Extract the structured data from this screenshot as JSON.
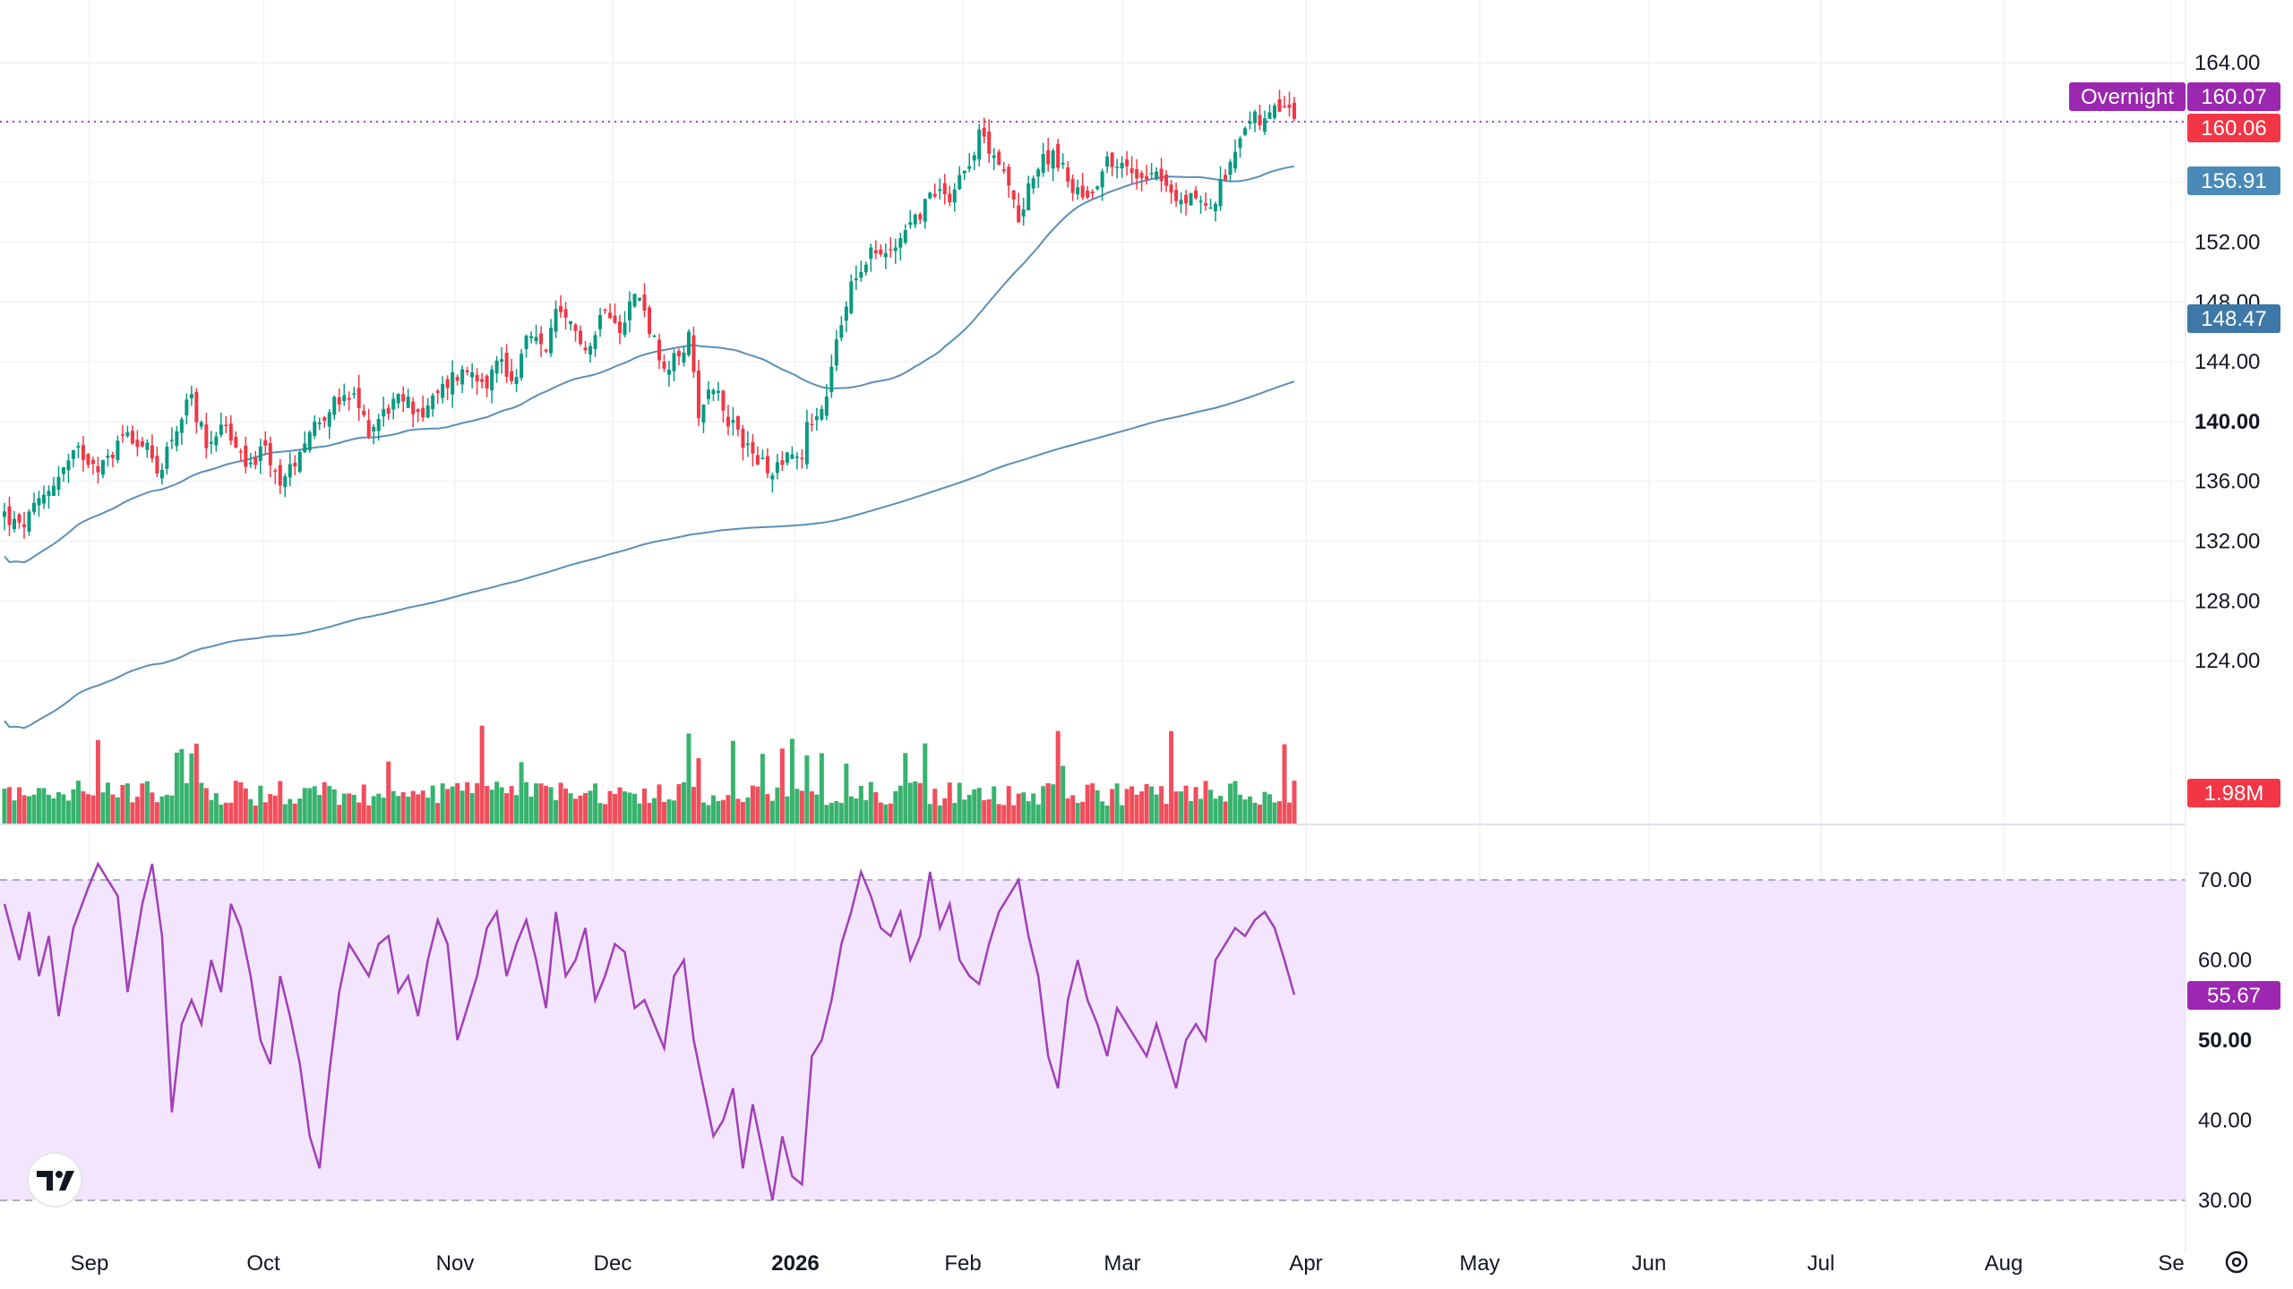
{
  "chart_data": {
    "type": "candlestick",
    "price_axis": {
      "ticks": [
        "164.00",
        "160.00",
        "156.00",
        "152.00",
        "148.00",
        "144.00",
        "140.00",
        "136.00",
        "132.00",
        "128.00",
        "124.00"
      ],
      "bold_tick": "140.00",
      "range": [
        120.8,
        166.0
      ]
    },
    "rsi_axis": {
      "ticks": [
        "70.00",
        "60.00",
        "50.00",
        "40.00",
        "30.00"
      ],
      "bold_tick": "50.00",
      "range": [
        28.5,
        72.0
      ],
      "band": [
        30,
        70
      ]
    },
    "x_labels": [
      {
        "text": "Sep",
        "day": 6,
        "bold": false
      },
      {
        "text": "Oct",
        "day": 36,
        "bold": false
      },
      {
        "text": "Nov",
        "day": 67,
        "bold": false
      },
      {
        "text": "Dec",
        "day": 97,
        "bold": false
      },
      {
        "text": "2026",
        "day": 128,
        "bold": true
      },
      {
        "text": "Feb",
        "day": 159,
        "bold": false
      },
      {
        "text": "Mar",
        "day": 187,
        "bold": false
      },
      {
        "text": "Apr",
        "day": 218,
        "bold": false
      },
      {
        "text": "May",
        "day": 248,
        "bold": false
      },
      {
        "text": "Jun",
        "day": 279,
        "bold": false
      },
      {
        "text": "Jul",
        "day": 309,
        "bold": false
      },
      {
        "text": "Aug",
        "day": 340,
        "bold": false
      },
      {
        "text": "Se",
        "day": 371,
        "bold": false
      }
    ],
    "tags": {
      "overnight_label": "Overnight",
      "overnight_price": "160.07",
      "last_price": "160.06",
      "ma_short": "156.91",
      "ma_long": "148.47",
      "volume": "1.98M",
      "rsi": "55.67"
    },
    "close_waypoints": [
      [
        0,
        133.8
      ],
      [
        3,
        132.8
      ],
      [
        6,
        134.0
      ],
      [
        10,
        136.0
      ],
      [
        15,
        138.0
      ],
      [
        20,
        137.0
      ],
      [
        25,
        139.5
      ],
      [
        29,
        138.0
      ],
      [
        31,
        136.5
      ],
      [
        34,
        139.0
      ],
      [
        38,
        141.5
      ],
      [
        41,
        138.5
      ],
      [
        44,
        140.0
      ],
      [
        49,
        137.0
      ],
      [
        53,
        138.0
      ],
      [
        55,
        136.5
      ],
      [
        57,
        136.0
      ],
      [
        61,
        139.0
      ],
      [
        66,
        141.0
      ],
      [
        71,
        141.5
      ],
      [
        74,
        139.5
      ],
      [
        78,
        141.0
      ],
      [
        81,
        141.5
      ],
      [
        85,
        140.5
      ],
      [
        91,
        143.0
      ],
      [
        95,
        143.5
      ],
      [
        98,
        142.8
      ],
      [
        101,
        144.3
      ],
      [
        103,
        142.5
      ],
      [
        106,
        145.5
      ],
      [
        110,
        145.0
      ],
      [
        112,
        147.0
      ],
      [
        116,
        146.0
      ],
      [
        119,
        145.0
      ],
      [
        122,
        148.0
      ],
      [
        125,
        146.5
      ],
      [
        128,
        148.5
      ],
      [
        130,
        147.5
      ],
      [
        134,
        143.0
      ],
      [
        139,
        145.5
      ],
      [
        141,
        140.8
      ],
      [
        144,
        142.5
      ],
      [
        148,
        139.5
      ],
      [
        152,
        138.0
      ],
      [
        155,
        136.5
      ],
      [
        159,
        138.0
      ],
      [
        162,
        137.5
      ],
      [
        163,
        140.0
      ],
      [
        166,
        140.5
      ],
      [
        169,
        145.0
      ],
      [
        172,
        149.5
      ],
      [
        176,
        151.5
      ],
      [
        179,
        151.0
      ],
      [
        182,
        152.5
      ],
      [
        186,
        154.0
      ],
      [
        189,
        155.5
      ],
      [
        192,
        155.2
      ],
      [
        195,
        157.0
      ],
      [
        198,
        159.0
      ],
      [
        201,
        158.2
      ],
      [
        204,
        155.5
      ],
      [
        206,
        153.5
      ],
      [
        208,
        156.0
      ],
      [
        213,
        158.2
      ],
      [
        216,
        156.0
      ],
      [
        220,
        155.0
      ],
      [
        224,
        157.5
      ],
      [
        227,
        157.0
      ],
      [
        230,
        156.5
      ],
      [
        234,
        157.0
      ],
      [
        238,
        154.5
      ],
      [
        242,
        155.2
      ],
      [
        245,
        154.0
      ],
      [
        248,
        156.5
      ],
      [
        250,
        158.5
      ],
      [
        253,
        160.5
      ],
      [
        256,
        159.8
      ],
      [
        259,
        161.0
      ],
      [
        262,
        160.5
      ]
    ],
    "rsi_waypoints": [
      [
        0,
        67
      ],
      [
        3,
        60
      ],
      [
        5,
        66
      ],
      [
        7,
        58
      ],
      [
        9,
        63
      ],
      [
        11,
        53
      ],
      [
        14,
        64
      ],
      [
        17,
        69
      ],
      [
        19,
        72
      ],
      [
        21,
        70
      ],
      [
        23,
        68
      ],
      [
        25,
        56
      ],
      [
        28,
        67
      ],
      [
        30,
        72
      ],
      [
        32,
        63
      ],
      [
        34,
        41
      ],
      [
        36,
        52
      ],
      [
        38,
        55
      ],
      [
        40,
        52
      ],
      [
        42,
        60
      ],
      [
        44,
        56
      ],
      [
        46,
        67
      ],
      [
        48,
        64
      ],
      [
        50,
        58
      ],
      [
        52,
        50
      ],
      [
        54,
        47
      ],
      [
        56,
        58
      ],
      [
        58,
        53
      ],
      [
        60,
        47
      ],
      [
        62,
        38
      ],
      [
        64,
        34
      ],
      [
        66,
        46
      ],
      [
        68,
        56
      ],
      [
        70,
        62
      ],
      [
        72,
        60
      ],
      [
        74,
        58
      ],
      [
        76,
        62
      ],
      [
        78,
        63
      ],
      [
        80,
        56
      ],
      [
        82,
        58
      ],
      [
        84,
        53
      ],
      [
        86,
        60
      ],
      [
        88,
        65
      ],
      [
        90,
        62
      ],
      [
        92,
        50
      ],
      [
        94,
        54
      ],
      [
        96,
        58
      ],
      [
        98,
        64
      ],
      [
        100,
        66
      ],
      [
        102,
        58
      ],
      [
        104,
        62
      ],
      [
        106,
        65
      ],
      [
        108,
        60
      ],
      [
        110,
        54
      ],
      [
        112,
        66
      ],
      [
        114,
        58
      ],
      [
        116,
        60
      ],
      [
        118,
        64
      ],
      [
        120,
        55
      ],
      [
        122,
        58
      ],
      [
        124,
        62
      ],
      [
        126,
        61
      ],
      [
        128,
        54
      ],
      [
        130,
        55
      ],
      [
        132,
        52
      ],
      [
        134,
        49
      ],
      [
        136,
        58
      ],
      [
        138,
        60
      ],
      [
        140,
        50
      ],
      [
        142,
        44
      ],
      [
        144,
        38
      ],
      [
        146,
        40
      ],
      [
        148,
        44
      ],
      [
        150,
        34
      ],
      [
        152,
        42
      ],
      [
        154,
        36
      ],
      [
        156,
        30
      ],
      [
        158,
        38
      ],
      [
        160,
        33
      ],
      [
        162,
        32
      ],
      [
        164,
        48
      ],
      [
        166,
        50
      ],
      [
        168,
        55
      ],
      [
        170,
        62
      ],
      [
        172,
        66
      ],
      [
        174,
        71
      ],
      [
        176,
        68
      ],
      [
        178,
        64
      ],
      [
        180,
        63
      ],
      [
        182,
        66
      ],
      [
        184,
        60
      ],
      [
        186,
        63
      ],
      [
        188,
        71
      ],
      [
        190,
        64
      ],
      [
        192,
        67
      ],
      [
        194,
        60
      ],
      [
        196,
        58
      ],
      [
        198,
        57
      ],
      [
        200,
        62
      ],
      [
        202,
        66
      ],
      [
        204,
        68
      ],
      [
        206,
        70
      ],
      [
        208,
        63
      ],
      [
        210,
        58
      ],
      [
        212,
        48
      ],
      [
        214,
        44
      ],
      [
        216,
        55
      ],
      [
        218,
        60
      ],
      [
        220,
        55
      ],
      [
        222,
        52
      ],
      [
        224,
        48
      ],
      [
        226,
        54
      ],
      [
        228,
        52
      ],
      [
        230,
        50
      ],
      [
        232,
        48
      ],
      [
        234,
        52
      ],
      [
        236,
        48
      ],
      [
        238,
        44
      ],
      [
        240,
        50
      ],
      [
        242,
        52
      ],
      [
        244,
        50
      ],
      [
        246,
        60
      ],
      [
        248,
        62
      ],
      [
        250,
        64
      ],
      [
        252,
        63
      ],
      [
        254,
        65
      ],
      [
        256,
        66
      ],
      [
        258,
        64
      ],
      [
        260,
        60
      ],
      [
        262,
        55.67
      ]
    ]
  }
}
